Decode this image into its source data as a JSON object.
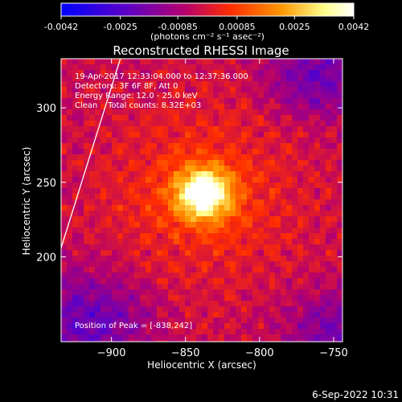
{
  "colorbar": {
    "tick_labels": [
      "-0.0042",
      "-0.0025",
      "-0.00085",
      "0.00085",
      "0.0025",
      "0.0042"
    ],
    "tick_values": [
      -0.0042,
      -0.0025,
      -0.00085,
      0.00085,
      0.0025,
      0.0042
    ],
    "range": [
      -0.0042,
      0.0042
    ],
    "units_label": "(photons cm⁻² s⁻¹ asec⁻²)",
    "colors": [
      "#0000ff",
      "#5a00c8",
      "#b4006e",
      "#ff2d00",
      "#ff9600",
      "#ffff8c",
      "#ffffff"
    ]
  },
  "plot": {
    "title": "Reconstructed RHESSI Image",
    "annotations": [
      "19-Apr-2017 12:33:04.000 to 12:37:36.000",
      "Detectors: 3F 6F 8F, Att 0",
      "Energy Range: 12.0 - 25.0 keV",
      "Clean    Total counts: 8.32E+03"
    ],
    "peak_text": "Position of Peak = [-838,242]",
    "footer_timestamp": "6-Sep-2022 10:31"
  },
  "chart_data": {
    "type": "heatmap",
    "title": "Reconstructed RHESSI Image",
    "xlabel": "Heliocentric X (arcsec)",
    "ylabel": "Heliocentric Y (arcsec)",
    "xlim": [
      -934,
      -744
    ],
    "ylim": [
      143,
      333
    ],
    "x_ticks": [
      -900,
      -850,
      -800,
      -750
    ],
    "x_tick_labels": [
      "−900",
      "−850",
      "−800",
      "−750"
    ],
    "y_ticks": [
      200,
      250,
      300
    ],
    "y_tick_labels": [
      "200",
      "250",
      "300"
    ],
    "peak": {
      "x": -838,
      "y": 242
    },
    "limb_line": [
      [
        -934,
        206
      ],
      [
        -894,
        333
      ]
    ],
    "colormap": "blue-purple-red-yellow-white",
    "value_range": [
      -0.0042,
      0.0042
    ]
  }
}
